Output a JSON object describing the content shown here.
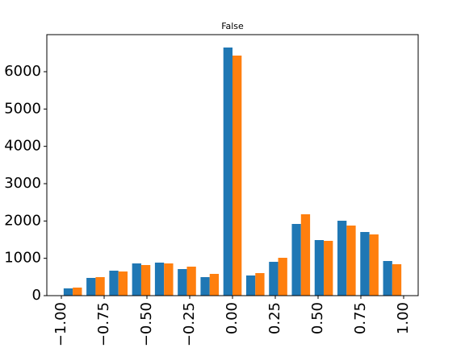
{
  "chart_data": {
    "type": "histogram",
    "title": "False",
    "bins": [
      -1.0,
      -0.8667,
      -0.7333,
      -0.6,
      -0.4667,
      -0.3333,
      -0.2,
      -0.0667,
      0.0667,
      0.2,
      0.3333,
      0.4667,
      0.6,
      0.7333,
      0.8667,
      1.0
    ],
    "series": [
      {
        "color": "#1f77b4",
        "values": [
          194,
          475,
          669,
          863,
          885,
          712,
          496,
          6648,
          540,
          906,
          1921,
          1489,
          2007,
          1705,
          928
        ]
      },
      {
        "color": "#ff7f0e",
        "values": [
          216,
          496,
          647,
          820,
          863,
          777,
          583,
          6432,
          604,
          1014,
          2180,
          1468,
          1878,
          1640,
          842
        ]
      }
    ],
    "xlim": [
      -1.085,
      1.085
    ],
    "xticks": [
      {
        "value": -1.0,
        "label": "−1.00"
      },
      {
        "value": -0.75,
        "label": "−0.75"
      },
      {
        "value": -0.5,
        "label": "−0.50"
      },
      {
        "value": -0.25,
        "label": "−0.25"
      },
      {
        "value": 0,
        "label": "0.00"
      },
      {
        "value": 0.25,
        "label": "0.25"
      },
      {
        "value": 0.5,
        "label": "0.50"
      },
      {
        "value": 0.75,
        "label": "0.75"
      },
      {
        "value": 1.0,
        "label": "1.00"
      }
    ],
    "ylim": [
      0,
      6993
    ],
    "yticks": [
      0,
      1000,
      2000,
      3000,
      4000,
      5000,
      6000
    ]
  }
}
